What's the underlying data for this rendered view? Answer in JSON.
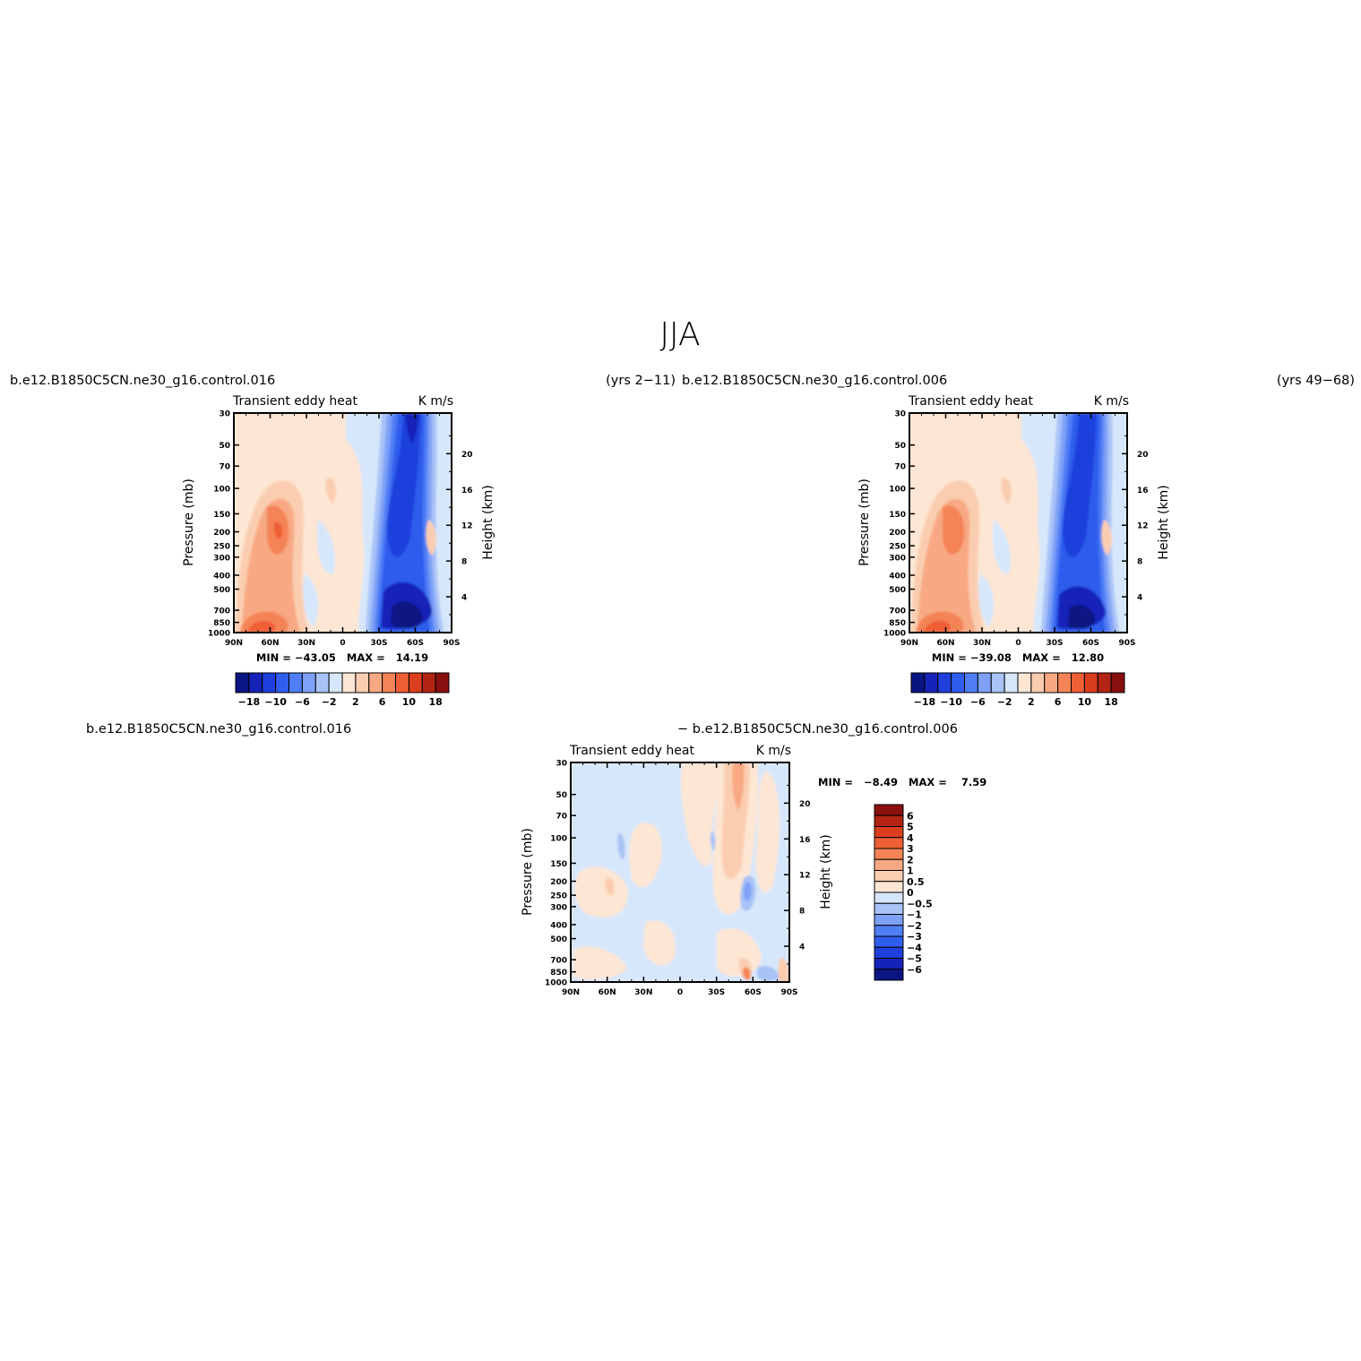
{
  "main_title": "JJA",
  "colors": {
    "neg": [
      "#0a1582",
      "#1623b8",
      "#1e3fdc",
      "#2f5ded",
      "#4f7ef5",
      "#7ea1f7",
      "#a9c3f7",
      "#d7e7fb"
    ],
    "pos": [
      "#fde6d3",
      "#fbcdb0",
      "#f8a983",
      "#f48457",
      "#ef5f35",
      "#db3e1c",
      "#b42414",
      "#8a1010"
    ]
  },
  "chart_data": [
    {
      "type": "heatmap",
      "case": "b.e12.B1850C5CN.ne30_g16.control.016",
      "years": "(yrs 2−11)",
      "title_left": "Transient eddy heat",
      "title_right": "K m/s",
      "xlabel": "",
      "ylabel": "Pressure (mb)",
      "ylabel_right": "Height (km)",
      "xticks": [
        "90N",
        "60N",
        "30N",
        "0",
        "30S",
        "60S",
        "90S"
      ],
      "yticks": [
        "30",
        "50",
        "70",
        "100",
        "150",
        "200",
        "250",
        "300",
        "400",
        "500",
        "700",
        "850",
        "1000"
      ],
      "yticks_right": [
        "20",
        "16",
        "12",
        "8",
        "4"
      ],
      "stats_text": "MIN = −43.05   MAX =   14.19",
      "min": -43.05,
      "max": 14.19,
      "colorbar_labels": [
        "−18",
        "−10",
        "−6",
        "−2",
        "2",
        "6",
        "10",
        "18"
      ],
      "colorbar_levels": [
        -18,
        -14,
        -10,
        -8,
        -6,
        -4,
        -2,
        0,
        2,
        4,
        6,
        8,
        10,
        14,
        18
      ]
    },
    {
      "type": "heatmap",
      "case": "b.e12.B1850C5CN.ne30_g16.control.006",
      "years": "(yrs 49−68)",
      "title_left": "Transient eddy heat",
      "title_right": "K m/s",
      "xlabel": "",
      "ylabel": "Pressure (mb)",
      "ylabel_right": "Height (km)",
      "xticks": [
        "90N",
        "60N",
        "30N",
        "0",
        "30S",
        "60S",
        "90S"
      ],
      "yticks": [
        "30",
        "50",
        "70",
        "100",
        "150",
        "200",
        "250",
        "300",
        "400",
        "500",
        "700",
        "850",
        "1000"
      ],
      "yticks_right": [
        "20",
        "16",
        "12",
        "8",
        "4"
      ],
      "stats_text": "MIN = −39.08   MAX =   12.80",
      "min": -39.08,
      "max": 12.8,
      "colorbar_labels": [
        "−18",
        "−10",
        "−6",
        "−2",
        "2",
        "6",
        "10",
        "18"
      ],
      "colorbar_levels": [
        -18,
        -14,
        -10,
        -8,
        -6,
        -4,
        -2,
        0,
        2,
        4,
        6,
        8,
        10,
        14,
        18
      ]
    },
    {
      "type": "heatmap",
      "case_left": "b.e12.B1850C5CN.ne30_g16.control.016",
      "case_right": "− b.e12.B1850C5CN.ne30_g16.control.006",
      "title_left": "Transient eddy heat",
      "title_right": "K m/s",
      "xlabel": "",
      "ylabel": "Pressure (mb)",
      "ylabel_right": "Height (km)",
      "xticks": [
        "90N",
        "60N",
        "30N",
        "0",
        "30S",
        "60S",
        "90S"
      ],
      "yticks": [
        "30",
        "50",
        "70",
        "100",
        "150",
        "200",
        "250",
        "300",
        "400",
        "500",
        "700",
        "850",
        "1000"
      ],
      "yticks_right": [
        "20",
        "16",
        "12",
        "8",
        "4"
      ],
      "stats_text": "MIN =   −8.49   MAX =    7.59",
      "min": -8.49,
      "max": 7.59,
      "colorbar_labels": [
        "6",
        "5",
        "4",
        "3",
        "2",
        "1",
        "0.5",
        "0",
        "−0.5",
        "−1",
        "−2",
        "−3",
        "−4",
        "−5",
        "−6"
      ],
      "colorbar_levels": [
        -6,
        -5,
        -4,
        -3,
        -2,
        -1,
        -0.5,
        0,
        0.5,
        1,
        2,
        3,
        4,
        5,
        6
      ]
    }
  ]
}
